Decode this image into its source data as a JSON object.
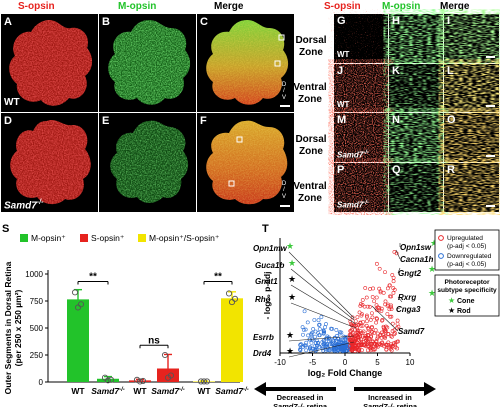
{
  "headers": {
    "s_opsin": "S-opsin",
    "m_opsin": "M-opsin",
    "merge": "Merge"
  },
  "panels": {
    "A": "A",
    "B": "B",
    "C": "C",
    "D": "D",
    "E": "E",
    "F": "F",
    "G": "G",
    "H": "H",
    "I": "I",
    "J": "J",
    "K": "K",
    "L": "L",
    "M": "M",
    "N": "N",
    "O": "O",
    "P": "P",
    "Q": "Q",
    "R": "R",
    "S": "S",
    "T": "T"
  },
  "genotypes": {
    "wt": "WT",
    "mutant": "Samd7",
    "mutant_sup": "-/-"
  },
  "zones": {
    "dorsal_1": "Dorsal",
    "dorsal_2": "Zone",
    "ventral_1": "Ventral",
    "ventral_2": "Zone"
  },
  "orientation": {
    "d": "D",
    "slash": "/",
    "v": "V"
  },
  "colors": {
    "red": "#e6231e",
    "green": "#22c32a",
    "yellow": "#f2e400",
    "up": "#e8262a",
    "down": "#2a6fd6",
    "star_cone": "#3cc83c"
  },
  "chart_data": [
    {
      "type": "bar",
      "ylabel": "Outer Segments in Dorsal Retina (per 250 x 250 µm²)",
      "legend": [
        {
          "name": "M-opsin⁺",
          "color": "#22c32a"
        },
        {
          "name": "S-opsin⁺",
          "color": "#e6231e"
        },
        {
          "name": "M-opsin⁺/S-opsin⁺",
          "color": "#f2e400"
        }
      ],
      "ylim": [
        0,
        1000
      ],
      "yticks": [
        "0",
        "250",
        "500",
        "750",
        "1000"
      ],
      "categories": [
        "WT",
        "Samd7-/-",
        "WT",
        "Samd7-/-",
        "WT",
        "Samd7-/-"
      ],
      "groups": [
        {
          "name": "M-opsin⁺",
          "color": "#22c32a",
          "values": [
            765,
            30
          ],
          "errors": [
            90,
            20
          ],
          "points": [
            [
              830,
              720,
              690
            ],
            [
              40,
              20,
              15
            ]
          ]
        },
        {
          "name": "S-opsin⁺",
          "color": "#e6231e",
          "values": [
            15,
            125
          ],
          "errors": [
            10,
            130
          ],
          "points": [
            [
              20,
              10,
              5
            ],
            [
              250,
              60,
              40
            ]
          ]
        },
        {
          "name": "M-opsin⁺/S-opsin⁺",
          "color": "#f2e400",
          "values": [
            5,
            775
          ],
          "errors": [
            5,
            60
          ],
          "points": [
            [
              5,
              5,
              5
            ],
            [
              820,
              770,
              740
            ]
          ]
        }
      ],
      "significance": [
        "**",
        "ns",
        "**"
      ]
    },
    {
      "type": "scatter",
      "xlabel": "log₂ Fold Change",
      "ylabel": "- log₁₀ p-adj",
      "xlim": [
        -10,
        10
      ],
      "xticks": [
        "-10",
        "-5",
        "0",
        "5",
        "10"
      ],
      "legend": [
        {
          "name": "Upregulated (p-adj < 0.05)",
          "color": "#e8262a"
        },
        {
          "name": "Downregulated (p-adj < 0.05)",
          "color": "#2a6fd6"
        }
      ],
      "subtype_legend": {
        "title": "Photoreceptor subtype specificity",
        "cone": "Cone",
        "rod": "Rod"
      },
      "genes_down": [
        "Opn1mw",
        "Guca1b",
        "Gnat1",
        "Rho",
        "Esrrb",
        "Drd4"
      ],
      "genes_up": [
        "Opn1sw",
        "Cacna1h",
        "Gngt2",
        "Rxrg",
        "Cnga3",
        "Samd7"
      ],
      "arrow_left": "Decreased in Samd7-/- retina",
      "arrow_right": "Increased in Samd7-/- retina"
    }
  ]
}
